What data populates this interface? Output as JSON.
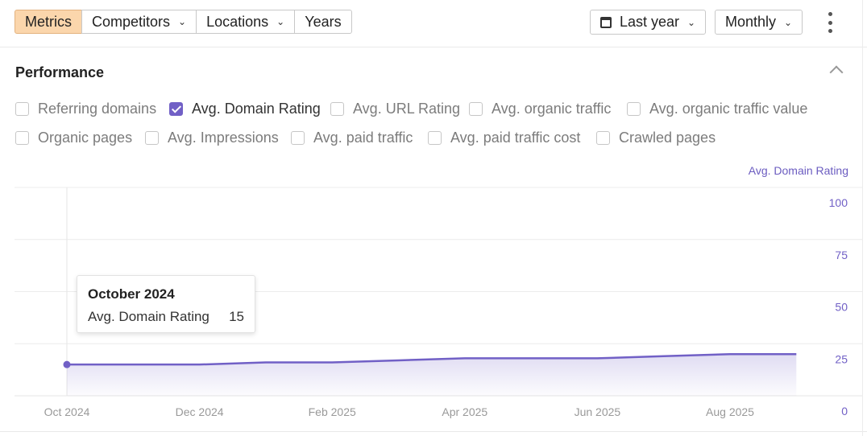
{
  "toolbar": {
    "tabs": [
      {
        "label": "Metrics",
        "active": true
      },
      {
        "label": "Competitors",
        "dropdown": true
      },
      {
        "label": "Locations",
        "dropdown": true
      },
      {
        "label": "Years"
      }
    ],
    "date_range": {
      "label": "Last year",
      "icon": "calendar-icon"
    },
    "interval": {
      "label": "Monthly"
    },
    "more_icon": "more-vertical-icon"
  },
  "performance": {
    "title": "Performance",
    "metrics": [
      {
        "label": "Referring domains",
        "checked": false
      },
      {
        "label": "Avg. Domain Rating",
        "checked": true
      },
      {
        "label": "Avg. URL Rating",
        "checked": false
      },
      {
        "label": "Avg. organic traffic",
        "checked": false
      },
      {
        "label": "Avg. organic traffic value",
        "checked": false
      },
      {
        "label": "Organic pages",
        "checked": false
      },
      {
        "label": "Avg. Impressions",
        "checked": false
      },
      {
        "label": "Avg. paid traffic",
        "checked": false
      },
      {
        "label": "Avg. paid traffic cost",
        "checked": false
      },
      {
        "label": "Crawled pages",
        "checked": false
      }
    ]
  },
  "tooltip": {
    "title": "October 2024",
    "label": "Avg. Domain Rating",
    "value": "15"
  },
  "colors": {
    "accent": "#7160c6",
    "active_tab": "#fbd6ac"
  },
  "chart_data": {
    "type": "area",
    "series": [
      {
        "name": "Avg. Domain Rating",
        "values": [
          15,
          15,
          15,
          16,
          16,
          17,
          18,
          18,
          18,
          19,
          20,
          20
        ]
      }
    ],
    "x": [
      "Oct 2024",
      "Nov 2024",
      "Dec 2024",
      "Jan 2025",
      "Feb 2025",
      "Mar 2025",
      "Apr 2025",
      "May 2025",
      "Jun 2025",
      "Jul 2025",
      "Aug 2025",
      "Sep 2025"
    ],
    "x_tick_labels": [
      "Oct 2024",
      "Dec 2024",
      "Feb 2025",
      "Apr 2025",
      "Jun 2025",
      "Aug 2025"
    ],
    "y_tick_labels": [
      "100",
      "75",
      "50",
      "25",
      "0"
    ],
    "ylim": [
      0,
      100
    ],
    "y_axis_side": "right",
    "grid": true,
    "highlighted_index": 0
  }
}
